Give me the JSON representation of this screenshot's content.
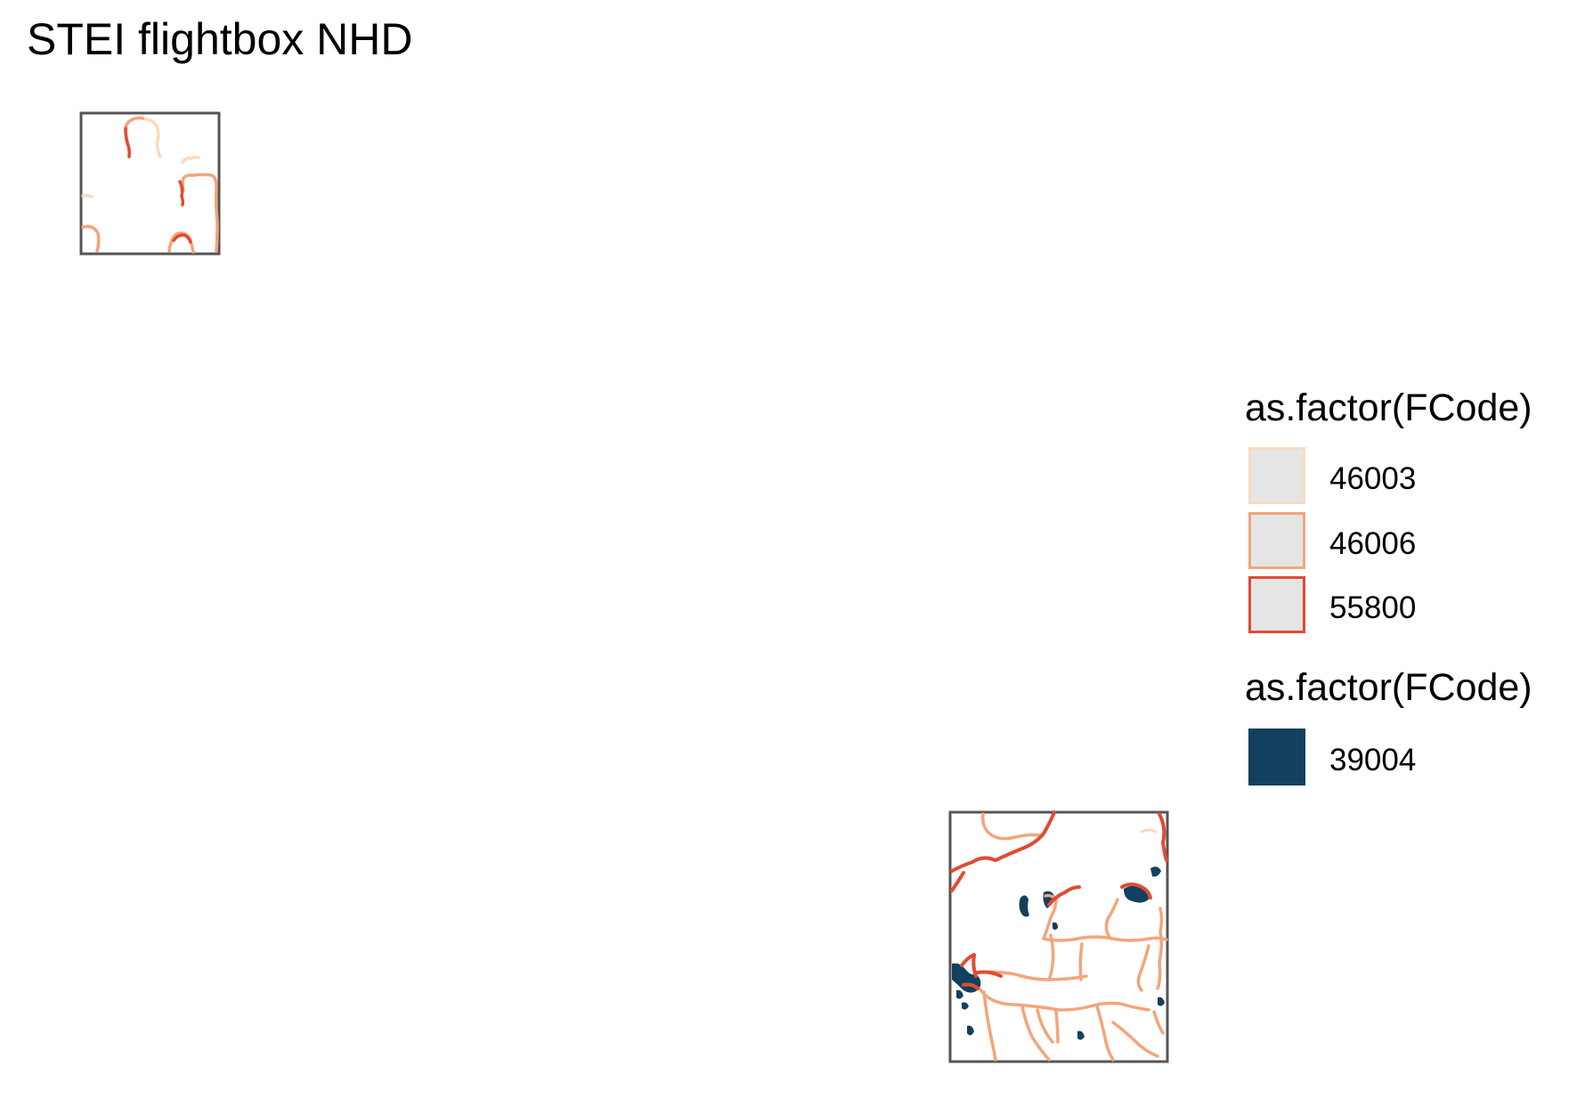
{
  "title": "STEI flightbox NHD",
  "colors": {
    "fcode_46003": "#fbd9bf",
    "fcode_46006": "#f3a57b",
    "fcode_55800": "#e34a33",
    "fcode_39004": "#12405e",
    "frame": "#555555",
    "legend_key_fill": "#e5e5e5"
  },
  "legend": {
    "line_title": "as.factor(FCode)",
    "line_items": [
      {
        "label": "46003",
        "color": "#fbd9bf"
      },
      {
        "label": "46006",
        "color": "#f3a57b"
      },
      {
        "label": "55800",
        "color": "#e34a33"
      }
    ],
    "fill_title": "as.factor(FCode)",
    "fill_items": [
      {
        "label": "39004",
        "color": "#12405e"
      }
    ]
  }
}
